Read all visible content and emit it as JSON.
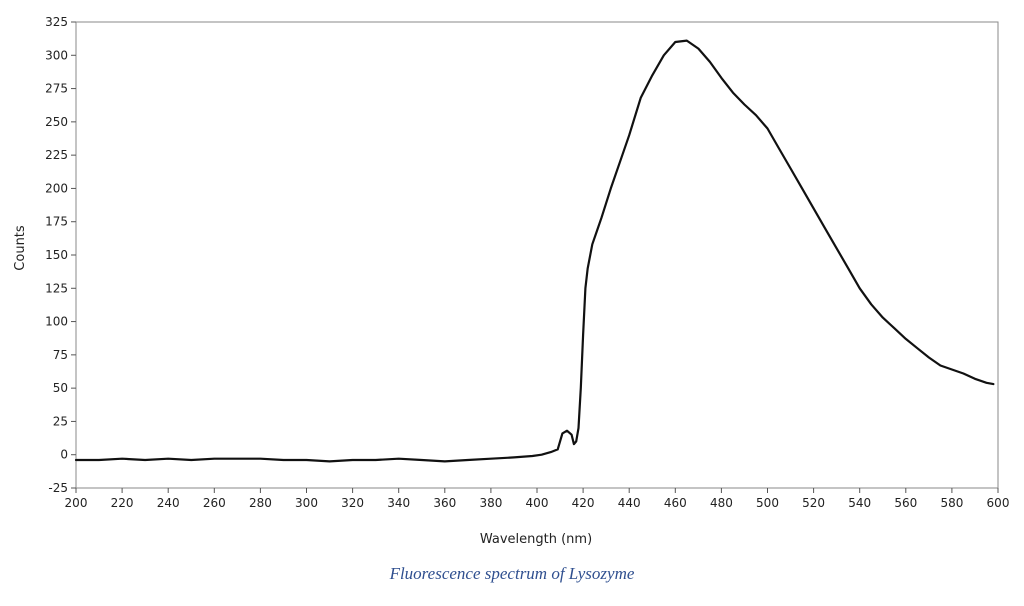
{
  "chart_data": {
    "type": "line",
    "title": "",
    "xlabel": "Wavelength (nm)",
    "ylabel": "Counts",
    "xlim": [
      200,
      600
    ],
    "ylim": [
      -25,
      325
    ],
    "xticks": [
      200,
      220,
      240,
      260,
      280,
      300,
      320,
      340,
      360,
      380,
      400,
      420,
      440,
      460,
      480,
      500,
      520,
      540,
      560,
      580,
      600
    ],
    "yticks": [
      -25,
      0,
      25,
      50,
      75,
      100,
      125,
      150,
      175,
      200,
      225,
      250,
      275,
      300,
      325
    ],
    "grid": false,
    "series": [
      {
        "color": "#111111",
        "x": [
          200,
          210,
          220,
          230,
          240,
          250,
          260,
          270,
          280,
          290,
          300,
          310,
          320,
          330,
          340,
          350,
          360,
          370,
          380,
          390,
          398,
          402,
          406,
          409,
          411,
          413,
          415,
          416,
          417,
          418,
          419,
          420,
          421,
          422,
          424,
          426,
          428,
          432,
          436,
          440,
          445,
          450,
          455,
          460,
          465,
          470,
          475,
          480,
          485,
          490,
          495,
          500,
          505,
          510,
          515,
          520,
          525,
          530,
          535,
          540,
          545,
          550,
          555,
          560,
          565,
          570,
          575,
          580,
          585,
          590,
          595,
          598
        ],
        "y": [
          -4,
          -4,
          -3,
          -4,
          -3,
          -4,
          -3,
          -3,
          -3,
          -4,
          -4,
          -5,
          -4,
          -4,
          -3,
          -4,
          -5,
          -4,
          -3,
          -2,
          -1,
          0,
          2,
          4,
          16,
          18,
          15,
          8,
          10,
          20,
          50,
          90,
          125,
          140,
          158,
          168,
          178,
          200,
          220,
          240,
          268,
          285,
          300,
          310,
          311,
          305,
          295,
          283,
          272,
          263,
          255,
          245,
          230,
          215,
          200,
          185,
          170,
          155,
          140,
          125,
          113,
          103,
          95,
          87,
          80,
          73,
          67,
          64,
          61,
          57,
          54,
          53
        ]
      }
    ]
  },
  "caption": "Fluorescence spectrum of Lysozyme"
}
